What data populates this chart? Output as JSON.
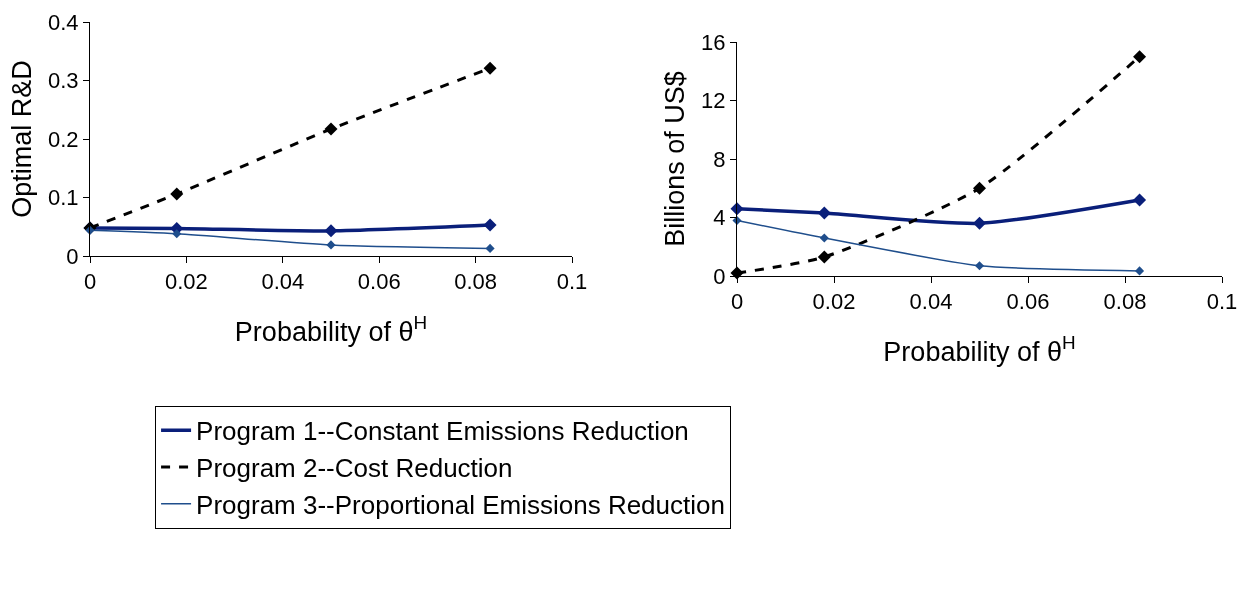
{
  "chart_data": [
    {
      "type": "line",
      "xlabel": "Probability of θ$^{H}$",
      "ylabel": "Optimal R&D",
      "x": [
        0,
        0.018,
        0.05,
        0.083
      ],
      "xlim": [
        0,
        0.1
      ],
      "xticks": [
        0,
        0.02,
        0.04,
        0.06,
        0.08,
        0.1
      ],
      "ylim": [
        0,
        0.4
      ],
      "yticks": [
        0,
        0.1,
        0.2,
        0.3,
        0.4
      ],
      "grid": false,
      "legend": "bottom",
      "marker": "diamond",
      "series": [
        {
          "name": "Program 1--Constant Emissions Reduction",
          "color": "#0a1f7a",
          "line_style": "solid",
          "values": [
            0.048,
            0.047,
            0.043,
            0.053
          ]
        },
        {
          "name": "Program 2--Cost Reduction",
          "color": "#000000",
          "line_style": "dashed",
          "values": [
            0.048,
            0.106,
            0.217,
            0.321
          ]
        },
        {
          "name": "Program 3--Proportional Emissions Reduction",
          "color": "#1f4e8c",
          "line_style": "solid",
          "values": [
            0.044,
            0.038,
            0.019,
            0.013
          ]
        }
      ]
    },
    {
      "type": "line",
      "xlabel": "Probability of θ$^{H}$",
      "ylabel": "Billions of US$",
      "x": [
        0,
        0.018,
        0.05,
        0.083
      ],
      "xlim": [
        0,
        0.1
      ],
      "xticks": [
        0,
        0.02,
        0.04,
        0.06,
        0.08,
        0.1
      ],
      "ylim": [
        0,
        16
      ],
      "yticks": [
        0,
        4,
        8,
        12,
        16
      ],
      "grid": false,
      "legend": false,
      "marker": "diamond",
      "series": [
        {
          "color": "#0a1f7a",
          "line_style": "solid",
          "values": [
            4.6,
            4.3,
            3.6,
            5.2
          ]
        },
        {
          "color": "#000000",
          "line_style": "dashed",
          "values": [
            0.2,
            1.3,
            6.0,
            15.0
          ]
        },
        {
          "color": "#1f4e8c",
          "line_style": "solid",
          "values": [
            3.8,
            2.6,
            0.7,
            0.35
          ]
        }
      ]
    }
  ]
}
